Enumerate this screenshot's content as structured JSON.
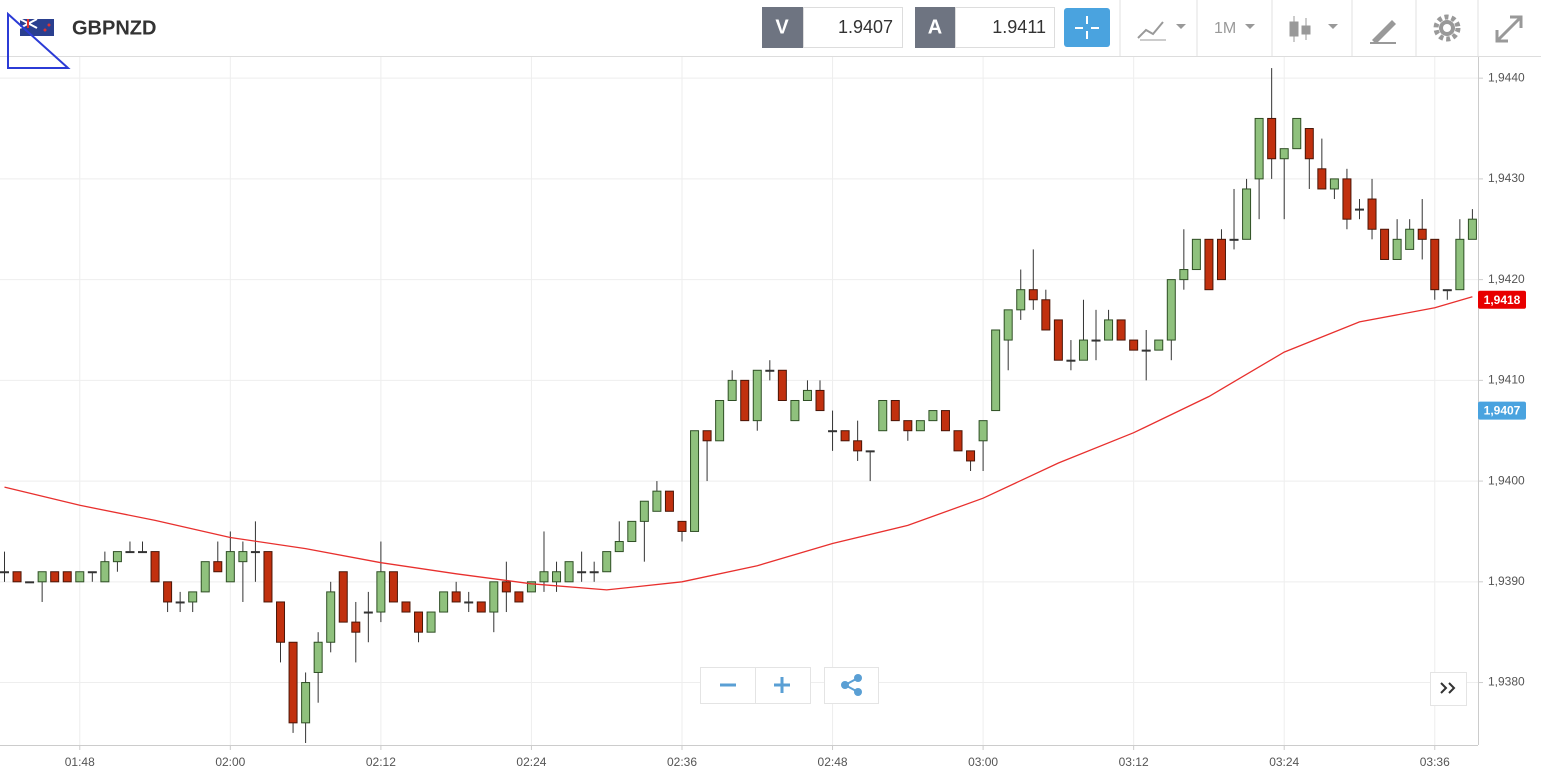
{
  "toolbar": {
    "symbol": "GBPNZD",
    "bid_label": "V",
    "bid": 1.9407,
    "ask_label": "A",
    "ask": 1.9411,
    "timeframe": "1M"
  },
  "chart_data": {
    "type": "candlestick",
    "x": [
      "01:42",
      "01:43",
      "01:44",
      "01:45",
      "01:46",
      "01:47",
      "01:48",
      "01:49",
      "01:50",
      "01:51",
      "01:52",
      "01:53",
      "01:54",
      "01:55",
      "01:56",
      "01:57",
      "01:58",
      "01:59",
      "02:00",
      "02:01",
      "02:02",
      "02:03",
      "02:04",
      "02:05",
      "02:06",
      "02:07",
      "02:08",
      "02:09",
      "02:10",
      "02:11",
      "02:12",
      "02:13",
      "02:14",
      "02:15",
      "02:16",
      "02:17",
      "02:18",
      "02:19",
      "02:20",
      "02:21",
      "02:22",
      "02:23",
      "02:24",
      "02:25",
      "02:26",
      "02:27",
      "02:28",
      "02:29",
      "02:30",
      "02:31",
      "02:32",
      "02:33",
      "02:34",
      "02:35",
      "02:36",
      "02:37",
      "02:38",
      "02:39",
      "02:40",
      "02:41",
      "02:42",
      "02:43",
      "02:44",
      "02:45",
      "02:46",
      "02:47",
      "02:48",
      "02:49",
      "02:50",
      "02:51",
      "02:52",
      "02:53",
      "02:54",
      "02:55",
      "02:56",
      "02:57",
      "02:58",
      "02:59",
      "03:00",
      "03:01",
      "03:02",
      "03:03",
      "03:04",
      "03:05",
      "03:06",
      "03:07",
      "03:08",
      "03:09",
      "03:10",
      "03:11",
      "03:12",
      "03:13",
      "03:14",
      "03:15",
      "03:16",
      "03:17",
      "03:18",
      "03:19",
      "03:20",
      "03:21",
      "03:22",
      "03:23",
      "03:24",
      "03:25",
      "03:26",
      "03:27",
      "03:28",
      "03:29",
      "03:30",
      "03:31",
      "03:32",
      "03:33",
      "03:34",
      "03:35",
      "03:36",
      "03:37",
      "03:38",
      "03:39"
    ],
    "open": [
      1.9391,
      1.9391,
      1.939,
      1.939,
      1.9391,
      1.9391,
      1.939,
      1.9391,
      1.939,
      1.9392,
      1.9393,
      1.9393,
      1.9393,
      1.939,
      1.9388,
      1.9388,
      1.9389,
      1.9392,
      1.939,
      1.9392,
      1.9393,
      1.9393,
      1.9388,
      1.9384,
      1.9376,
      1.9381,
      1.9384,
      1.9391,
      1.9386,
      1.9387,
      1.9387,
      1.9391,
      1.9388,
      1.9387,
      1.9385,
      1.9387,
      1.9389,
      1.9388,
      1.9388,
      1.9387,
      1.939,
      1.9389,
      1.9389,
      1.939,
      1.939,
      1.939,
      1.9391,
      1.9391,
      1.9391,
      1.9393,
      1.9394,
      1.9396,
      1.9397,
      1.9399,
      1.9396,
      1.9395,
      1.9405,
      1.9404,
      1.9408,
      1.941,
      1.9406,
      1.9411,
      1.9411,
      1.9406,
      1.9408,
      1.9409,
      1.9405,
      1.9405,
      1.9404,
      1.9403,
      1.9405,
      1.9408,
      1.9406,
      1.9405,
      1.9406,
      1.9407,
      1.9405,
      1.9403,
      1.9404,
      1.9407,
      1.9414,
      1.9417,
      1.9419,
      1.9418,
      1.9416,
      1.9412,
      1.9412,
      1.9414,
      1.9414,
      1.9416,
      1.9414,
      1.9413,
      1.9413,
      1.9414,
      1.942,
      1.9421,
      1.9424,
      1.9424,
      1.9424,
      1.9424,
      1.943,
      1.9436,
      1.9432,
      1.9433,
      1.9435,
      1.9431,
      1.9429,
      1.943,
      1.9427,
      1.9428,
      1.9425,
      1.9422,
      1.9423,
      1.9425,
      1.9424,
      1.9419,
      1.9419,
      1.9424
    ],
    "high": [
      1.9393,
      1.9391,
      1.939,
      1.9391,
      1.9391,
      1.9391,
      1.9391,
      1.9391,
      1.9393,
      1.9393,
      1.9394,
      1.9394,
      1.9393,
      1.939,
      1.9389,
      1.9389,
      1.9392,
      1.9394,
      1.9395,
      1.9394,
      1.9396,
      1.9393,
      1.9388,
      1.9384,
      1.9381,
      1.9385,
      1.939,
      1.9391,
      1.9388,
      1.9389,
      1.9394,
      1.9391,
      1.9388,
      1.9387,
      1.9387,
      1.9389,
      1.939,
      1.9389,
      1.9388,
      1.939,
      1.9392,
      1.9389,
      1.939,
      1.9395,
      1.9392,
      1.9392,
      1.9393,
      1.9392,
      1.9393,
      1.9396,
      1.9396,
      1.9398,
      1.94,
      1.9399,
      1.9396,
      1.9405,
      1.9405,
      1.9408,
      1.9411,
      1.941,
      1.9411,
      1.9412,
      1.9411,
      1.9408,
      1.941,
      1.941,
      1.9407,
      1.9405,
      1.9406,
      1.9403,
      1.9408,
      1.9408,
      1.9406,
      1.9406,
      1.9407,
      1.9407,
      1.9405,
      1.9403,
      1.9406,
      1.9415,
      1.9417,
      1.9421,
      1.9423,
      1.9419,
      1.9416,
      1.9414,
      1.9418,
      1.9417,
      1.9417,
      1.9416,
      1.9414,
      1.9415,
      1.9414,
      1.942,
      1.9425,
      1.9424,
      1.9424,
      1.9425,
      1.9429,
      1.943,
      1.9436,
      1.9441,
      1.9433,
      1.9436,
      1.9435,
      1.9434,
      1.943,
      1.9431,
      1.9428,
      1.943,
      1.9425,
      1.9426,
      1.9426,
      1.9428,
      1.9424,
      1.9419,
      1.9426,
      1.9427
    ],
    "low": [
      1.939,
      1.939,
      1.939,
      1.9388,
      1.939,
      1.939,
      1.939,
      1.939,
      1.939,
      1.9391,
      1.9393,
      1.9393,
      1.939,
      1.9387,
      1.9387,
      1.9387,
      1.9389,
      1.9391,
      1.939,
      1.9388,
      1.939,
      1.9388,
      1.9382,
      1.9375,
      1.9374,
      1.9378,
      1.9383,
      1.9386,
      1.9382,
      1.9384,
      1.9386,
      1.9388,
      1.9387,
      1.9384,
      1.9385,
      1.9387,
      1.9388,
      1.9387,
      1.9387,
      1.9385,
      1.9387,
      1.9388,
      1.9389,
      1.9389,
      1.9389,
      1.939,
      1.939,
      1.939,
      1.9391,
      1.9393,
      1.9394,
      1.9392,
      1.9397,
      1.9397,
      1.9394,
      1.9395,
      1.94,
      1.9404,
      1.9408,
      1.9406,
      1.9405,
      1.941,
      1.9408,
      1.9406,
      1.9408,
      1.9407,
      1.9403,
      1.9404,
      1.9402,
      1.94,
      1.9405,
      1.9406,
      1.9404,
      1.9405,
      1.9406,
      1.9405,
      1.9403,
      1.9401,
      1.9401,
      1.9407,
      1.9411,
      1.9416,
      1.9417,
      1.9415,
      1.9412,
      1.9411,
      1.9412,
      1.9412,
      1.9414,
      1.9414,
      1.9413,
      1.941,
      1.9413,
      1.9412,
      1.9419,
      1.9421,
      1.9419,
      1.942,
      1.9423,
      1.9424,
      1.9426,
      1.943,
      1.9426,
      1.9433,
      1.9429,
      1.9429,
      1.9428,
      1.9425,
      1.9426,
      1.9424,
      1.9422,
      1.9422,
      1.9423,
      1.9422,
      1.9418,
      1.9418,
      1.9419,
      1.9424
    ],
    "close": [
      1.9391,
      1.939,
      1.939,
      1.9391,
      1.939,
      1.939,
      1.9391,
      1.9391,
      1.9392,
      1.9393,
      1.9393,
      1.9393,
      1.939,
      1.9388,
      1.9388,
      1.9389,
      1.9392,
      1.9391,
      1.9393,
      1.9393,
      1.9393,
      1.9388,
      1.9384,
      1.9376,
      1.938,
      1.9384,
      1.9389,
      1.9386,
      1.9385,
      1.9387,
      1.9391,
      1.9388,
      1.9387,
      1.9385,
      1.9387,
      1.9389,
      1.9388,
      1.9388,
      1.9387,
      1.939,
      1.9389,
      1.9388,
      1.939,
      1.9391,
      1.9391,
      1.9392,
      1.9391,
      1.9391,
      1.9393,
      1.9394,
      1.9396,
      1.9398,
      1.9399,
      1.9397,
      1.9395,
      1.9405,
      1.9404,
      1.9408,
      1.941,
      1.9406,
      1.9411,
      1.9411,
      1.9408,
      1.9408,
      1.9409,
      1.9407,
      1.9405,
      1.9404,
      1.9403,
      1.9403,
      1.9408,
      1.9406,
      1.9405,
      1.9406,
      1.9407,
      1.9405,
      1.9403,
      1.9402,
      1.9406,
      1.9415,
      1.9417,
      1.9419,
      1.9418,
      1.9415,
      1.9412,
      1.9412,
      1.9414,
      1.9414,
      1.9416,
      1.9414,
      1.9413,
      1.9413,
      1.9414,
      1.942,
      1.9421,
      1.9424,
      1.9419,
      1.942,
      1.9424,
      1.9429,
      1.9436,
      1.9432,
      1.9433,
      1.9436,
      1.9432,
      1.9429,
      1.943,
      1.9426,
      1.9427,
      1.9425,
      1.9422,
      1.9424,
      1.9425,
      1.9424,
      1.9419,
      1.9419,
      1.9424,
      1.9426
    ],
    "up_color": "#8fc17d",
    "down_color": "#c1300e",
    "moving_average": {
      "color": "#e8302e",
      "x": [
        "01:42",
        "01:48",
        "01:54",
        "02:00",
        "02:06",
        "02:12",
        "02:18",
        "02:24",
        "02:30",
        "02:36",
        "02:42",
        "02:48",
        "02:54",
        "03:00",
        "03:06",
        "03:12",
        "03:18",
        "03:24",
        "03:30",
        "03:36",
        "03:39"
      ],
      "values": [
        1.93994,
        1.93976,
        1.93961,
        1.93944,
        1.93933,
        1.93919,
        1.93908,
        1.93898,
        1.93892,
        1.939,
        1.93916,
        1.93938,
        1.93956,
        1.93983,
        1.94018,
        1.94048,
        1.94084,
        1.94128,
        1.94158,
        1.94172,
        1.94183
      ]
    },
    "xlim": [
      "01:42",
      "03:39"
    ],
    "xticks": [
      "01:48",
      "02:00",
      "02:12",
      "02:24",
      "02:36",
      "02:48",
      "03:00",
      "03:12",
      "03:24",
      "03:36"
    ],
    "ylim": [
      1.93738,
      1.94421
    ],
    "yticks": [
      {
        "value": 1.938,
        "label": "1,9380"
      },
      {
        "value": 1.939,
        "label": "1,9390"
      },
      {
        "value": 1.94,
        "label": "1,9400"
      },
      {
        "value": 1.941,
        "label": "1,9410"
      },
      {
        "value": 1.942,
        "label": "1,9420"
      },
      {
        "value": 1.943,
        "label": "1,9430"
      },
      {
        "value": 1.944,
        "label": "1,9440"
      }
    ],
    "grid": true,
    "price_markers": [
      {
        "value": 1.9418,
        "label": "1,9418",
        "color": "#e80000"
      },
      {
        "value": 1.9407,
        "label": "1,9407",
        "color": "#4aa3df"
      }
    ]
  }
}
